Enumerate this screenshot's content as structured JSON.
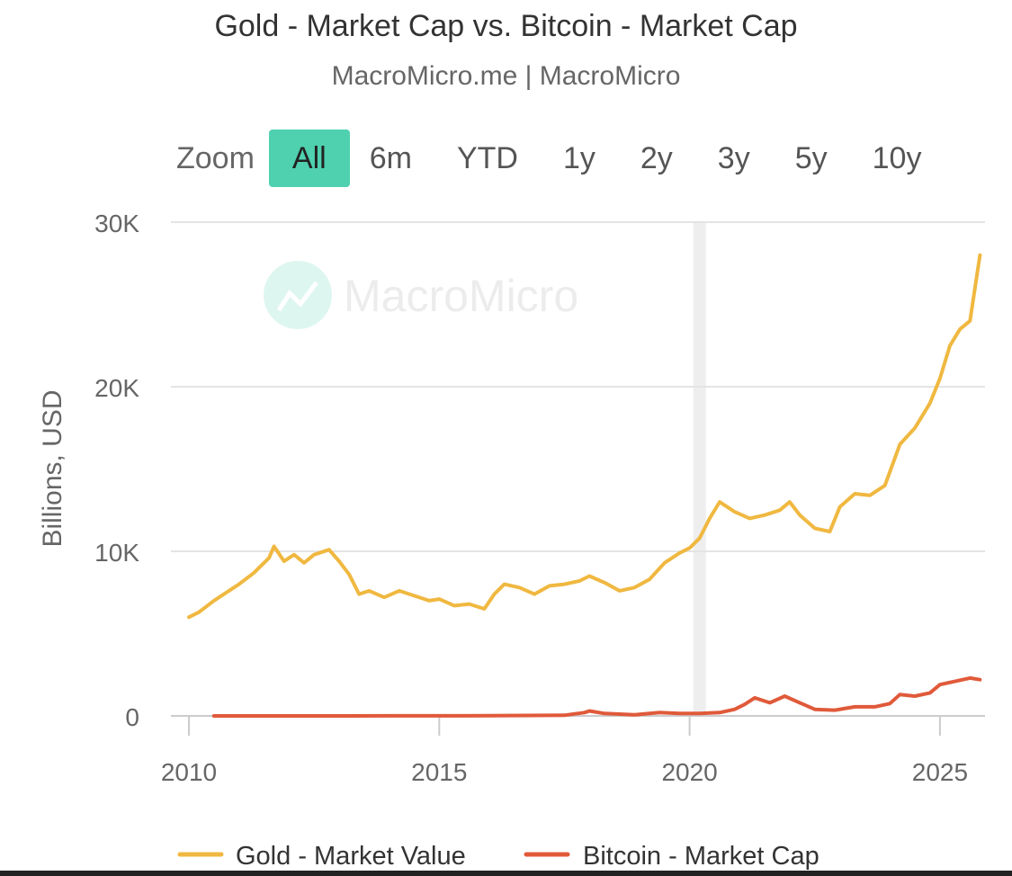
{
  "chart_data": {
    "type": "line",
    "title": "Gold - Market Cap vs. Bitcoin - Market Cap",
    "subtitle": "MacroMicro.me | MacroMicro",
    "watermark": "MacroMicro",
    "ylabel": "Billions, USD",
    "xlabel": "",
    "ylim": [
      0,
      30000
    ],
    "xlim": [
      2010,
      2025.9
    ],
    "y_ticks": [
      0,
      10000,
      20000,
      30000
    ],
    "y_tick_labels": [
      "0",
      "10K",
      "20K",
      "30K"
    ],
    "x_ticks": [
      2010,
      2015,
      2020,
      2025
    ],
    "x_tick_labels": [
      "2010",
      "2015",
      "2020",
      "2025"
    ],
    "grid": true,
    "legend_position": "bottom",
    "highlight_band_x": 2020.2,
    "series": [
      {
        "name": "Gold - Market Value",
        "color": "#f0b840",
        "x": [
          2010.0,
          2010.2,
          2010.5,
          2010.8,
          2011.0,
          2011.3,
          2011.6,
          2011.7,
          2011.9,
          2012.1,
          2012.3,
          2012.5,
          2012.8,
          2013.0,
          2013.2,
          2013.4,
          2013.6,
          2013.9,
          2014.2,
          2014.5,
          2014.8,
          2015.0,
          2015.3,
          2015.6,
          2015.9,
          2016.1,
          2016.3,
          2016.6,
          2016.9,
          2017.2,
          2017.5,
          2017.8,
          2018.0,
          2018.3,
          2018.6,
          2018.9,
          2019.2,
          2019.5,
          2019.8,
          2020.0,
          2020.2,
          2020.4,
          2020.6,
          2020.9,
          2021.2,
          2021.5,
          2021.8,
          2022.0,
          2022.2,
          2022.5,
          2022.8,
          2023.0,
          2023.3,
          2023.6,
          2023.9,
          2024.2,
          2024.5,
          2024.8,
          2025.0,
          2025.2,
          2025.4,
          2025.6,
          2025.8
        ],
        "values": [
          6000,
          6300,
          7000,
          7600,
          8000,
          8700,
          9600,
          10300,
          9400,
          9800,
          9300,
          9800,
          10100,
          9400,
          8600,
          7400,
          7600,
          7200,
          7600,
          7300,
          7000,
          7100,
          6700,
          6800,
          6500,
          7400,
          8000,
          7800,
          7400,
          7900,
          8000,
          8200,
          8500,
          8100,
          7600,
          7800,
          8300,
          9300,
          9900,
          10200,
          10800,
          12000,
          13000,
          12400,
          12000,
          12200,
          12500,
          13000,
          12200,
          11400,
          11200,
          12700,
          13500,
          13400,
          14000,
          16500,
          17500,
          19000,
          20500,
          22500,
          23500,
          24000,
          28000
        ]
      },
      {
        "name": "Bitcoin - Market Cap",
        "color": "#e05a3a",
        "x": [
          2010.5,
          2012.0,
          2014.0,
          2016.0,
          2017.5,
          2017.9,
          2018.0,
          2018.3,
          2018.9,
          2019.4,
          2019.8,
          2020.2,
          2020.6,
          2020.9,
          2021.1,
          2021.3,
          2021.6,
          2021.9,
          2022.2,
          2022.5,
          2022.9,
          2023.3,
          2023.7,
          2024.0,
          2024.2,
          2024.5,
          2024.8,
          2025.0,
          2025.3,
          2025.6,
          2025.8
        ],
        "values": [
          0,
          0,
          5,
          10,
          40,
          200,
          300,
          150,
          70,
          200,
          150,
          150,
          200,
          400,
          700,
          1100,
          800,
          1200,
          800,
          400,
          350,
          550,
          550,
          750,
          1300,
          1200,
          1400,
          1900,
          2100,
          2300,
          2200
        ]
      }
    ]
  },
  "zoom": {
    "label": "Zoom",
    "buttons": [
      "All",
      "6m",
      "YTD",
      "1y",
      "2y",
      "3y",
      "5y",
      "10y"
    ],
    "active": "All"
  }
}
